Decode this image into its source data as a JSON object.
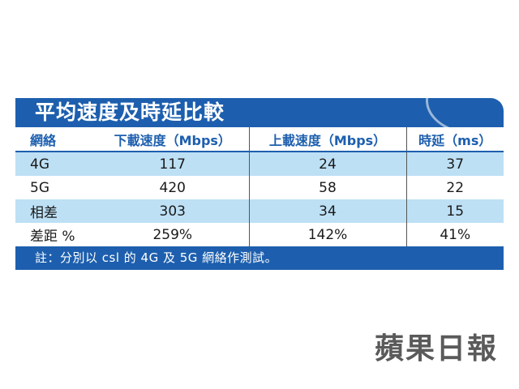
{
  "title": "平均速度及時延比較",
  "chart_data": {
    "type": "table",
    "columns": [
      "網絡",
      "下載速度（Mbps）",
      "上載速度（Mbps）",
      "時延（ms）"
    ],
    "rows": [
      [
        "4G",
        "117",
        "24",
        "37"
      ],
      [
        "5G",
        "420",
        "58",
        "22"
      ],
      [
        "相差",
        "303",
        "34",
        "15"
      ],
      [
        "差距 %",
        "259%",
        "142%",
        "41%"
      ]
    ]
  },
  "note": "註：分別以 csl 的 4G 及 5G 網絡作測試。",
  "logo": "蘋果日報",
  "colors": {
    "header_blue": "#1d5fae",
    "highlight_row": "#bde0f5"
  }
}
